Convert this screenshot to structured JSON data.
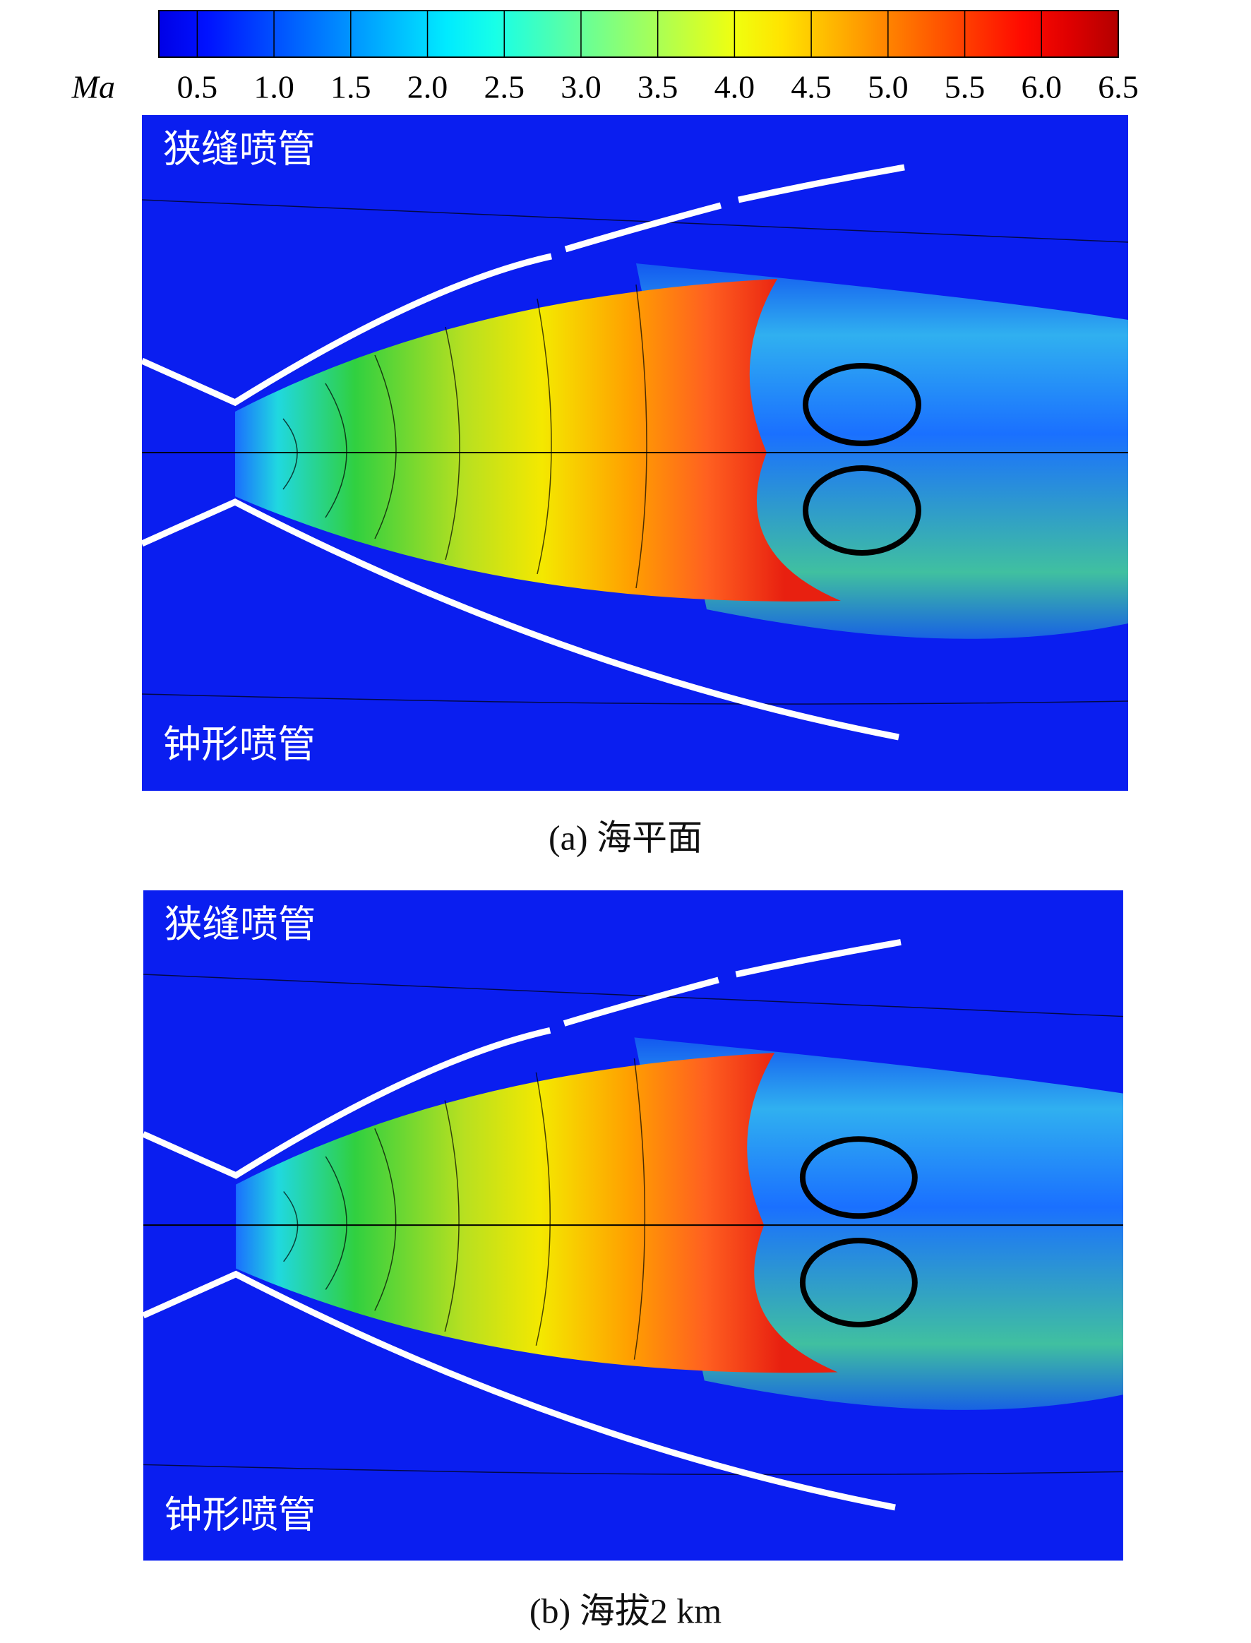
{
  "colorbar": {
    "label": "Ma",
    "lim": [
      0.25,
      6.5
    ],
    "ticks": [
      0.5,
      {
        "value": 1,
        "label": "1.0"
      },
      1.5,
      {
        "value": 2,
        "label": "2.0"
      },
      2.5,
      {
        "value": 3,
        "label": "3.0"
      },
      3.5,
      {
        "value": 4,
        "label": "4.0"
      },
      4.5,
      {
        "value": 5,
        "label": "5.0"
      },
      5.5,
      {
        "value": 6,
        "label": "6.0"
      },
      6.5
    ]
  },
  "panels": [
    {
      "caption": "(a) 海平面",
      "top_label": "狭缝喷管",
      "bottom_label": "钟形喷管"
    },
    {
      "caption": "(b) 海拔2 km",
      "top_label": "狭缝喷管",
      "bottom_label": "钟形喷管"
    }
  ]
}
